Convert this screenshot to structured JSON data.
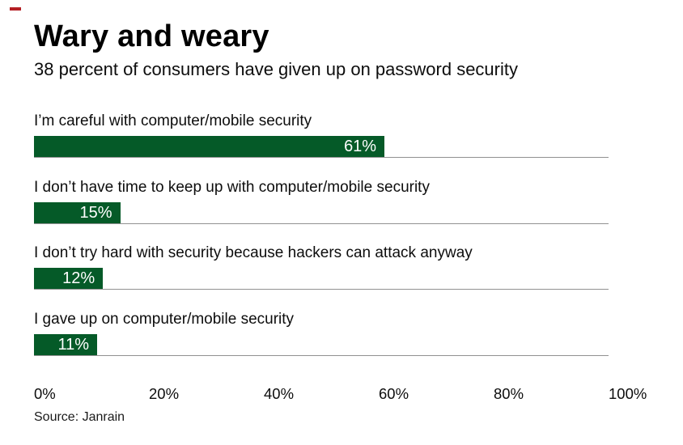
{
  "brand": {
    "dash_color": "#b41f24"
  },
  "header": {
    "title": "Wary and weary",
    "subtitle": "38 percent of consumers have given up on password security"
  },
  "chart_data": {
    "type": "bar",
    "orientation": "horizontal",
    "title": "Wary and weary",
    "subtitle": "38 percent of consumers have given up on password security",
    "categories": [
      "I’m careful with computer/mobile security",
      "I don’t have time to keep up with computer/mobile security",
      "I don’t try hard with security because hackers can attack anyway",
      "I gave up on computer/mobile security"
    ],
    "values": [
      61,
      15,
      12,
      11
    ],
    "value_labels": [
      "61%",
      "15%",
      "12%",
      "11%"
    ],
    "xlim": [
      0,
      100
    ],
    "x_tick_values": [
      0,
      20,
      40,
      60,
      80,
      100
    ],
    "x_tick_labels": [
      "0%",
      "20%",
      "40%",
      "60%",
      "80%",
      "100%"
    ],
    "bar_color": "#055a28",
    "value_label_color": "#ffffff",
    "baseline_color": "#919191",
    "grid": "off",
    "legend": "none",
    "source": "Source: Janrain"
  },
  "footer": {
    "source": "Source: Janrain"
  }
}
